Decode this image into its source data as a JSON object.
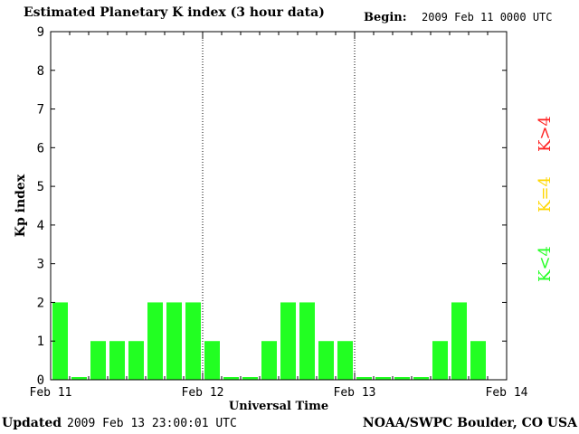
{
  "header": {
    "title": "Estimated Planetary K index (3 hour data)",
    "begin_label": "Begin:",
    "begin_value": "2009 Feb 11 0000 UTC"
  },
  "footer": {
    "updated_label": "Updated",
    "updated_value": "2009 Feb 13 23:00:01 UTC",
    "credit": "NOAA/SWPC Boulder, CO USA"
  },
  "legend": [
    {
      "label": "K>4",
      "color": "#ff2020"
    },
    {
      "label": "K=4",
      "color": "#ffd700"
    },
    {
      "label": "K<4",
      "color": "#22ff22"
    }
  ],
  "chart_data": {
    "type": "bar",
    "title": "Estimated Planetary K index (3 hour data)",
    "xlabel": "Universal Time",
    "ylabel": "Kp index",
    "ylim": [
      0,
      9
    ],
    "yticks": [
      0,
      1,
      2,
      3,
      4,
      5,
      6,
      7,
      8,
      9
    ],
    "xtick_labels": [
      "Feb 11",
      "Feb 12",
      "Feb 13",
      "Feb 14"
    ],
    "grid": "vertical dotted at day boundaries",
    "categories": [
      "Feb 11 00",
      "Feb 11 03",
      "Feb 11 06",
      "Feb 11 09",
      "Feb 11 12",
      "Feb 11 15",
      "Feb 11 18",
      "Feb 11 21",
      "Feb 12 00",
      "Feb 12 03",
      "Feb 12 06",
      "Feb 12 09",
      "Feb 12 12",
      "Feb 12 15",
      "Feb 12 18",
      "Feb 12 21",
      "Feb 13 00",
      "Feb 13 03",
      "Feb 13 06",
      "Feb 13 09",
      "Feb 13 12",
      "Feb 13 15",
      "Feb 13 18",
      "Feb 13 21"
    ],
    "values": [
      2,
      0,
      1,
      1,
      1,
      2,
      2,
      2,
      1,
      0,
      0,
      1,
      2,
      2,
      1,
      1,
      0,
      0,
      0,
      0,
      1,
      2,
      1,
      null
    ],
    "bar_color": "#22ff22"
  }
}
